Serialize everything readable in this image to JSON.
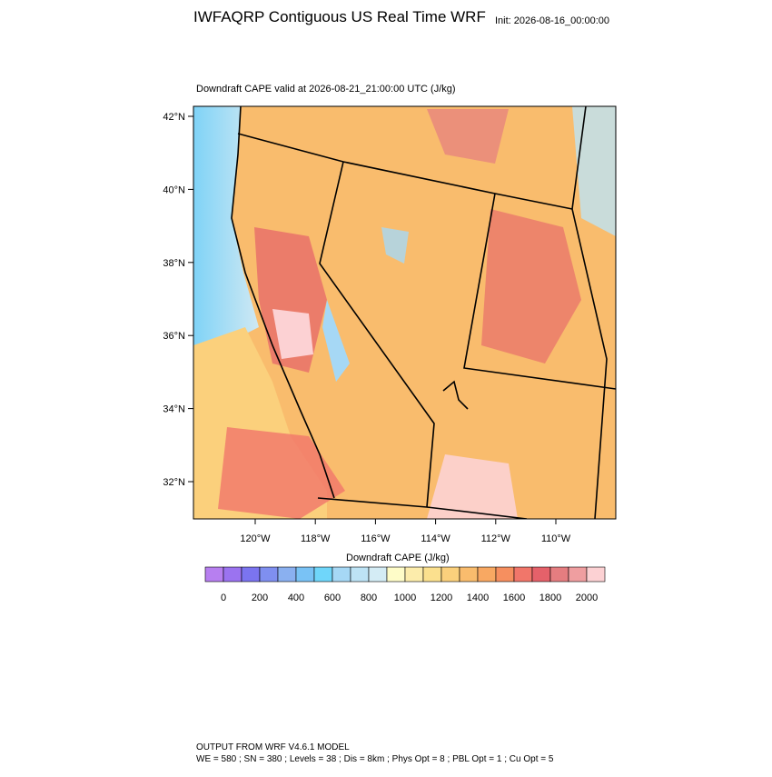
{
  "header": {
    "title": "IWFAQRP Contiguous US Real Time WRF",
    "init": "Init: 2026-08-16_00:00:00"
  },
  "map": {
    "subtitle": "Downdraft CAPE valid at 2026-08-21_21:00:00 UTC   (J/kg)",
    "lat_ticks": [
      {
        "value": 42,
        "label": "42°N"
      },
      {
        "value": 40,
        "label": "40°N"
      },
      {
        "value": 38,
        "label": "38°N"
      },
      {
        "value": 36,
        "label": "36°N"
      },
      {
        "value": 34,
        "label": "34°N"
      },
      {
        "value": 32,
        "label": "32°N"
      }
    ],
    "lon_ticks": [
      {
        "value": -120,
        "label": "120°W"
      },
      {
        "value": -118,
        "label": "118°W"
      },
      {
        "value": -116,
        "label": "116°W"
      },
      {
        "value": -114,
        "label": "114°W"
      },
      {
        "value": -112,
        "label": "112°W"
      },
      {
        "value": -110,
        "label": "110°W"
      }
    ]
  },
  "colorbar": {
    "title": "Downdraft CAPE  (J/kg)",
    "colors": [
      "#b77ff0",
      "#9b73f0",
      "#7b74f0",
      "#7f8ff0",
      "#8ab0f0",
      "#79c2f5",
      "#6fd6fa",
      "#a6d8f5",
      "#bde3f5",
      "#d4ecf5",
      "#fefcc8",
      "#fcecab",
      "#fbe08e",
      "#fbd07c",
      "#f9bc6d",
      "#f8a862",
      "#f68f5f",
      "#f1766a",
      "#e5616a",
      "#e57d80",
      "#ef9ea0",
      "#fcd1d3"
    ],
    "ticks": [
      0,
      200,
      400,
      600,
      800,
      1000,
      1200,
      1400,
      1600,
      1800,
      2000
    ]
  },
  "footer": {
    "line1": "OUTPUT FROM WRF V4.6.1 MODEL",
    "line2": "WE = 580 ; SN = 380 ; Levels = 38 ; Dis = 8km ; Phys Opt = 8 ; PBL Opt = 1 ; Cu Opt = 5"
  }
}
